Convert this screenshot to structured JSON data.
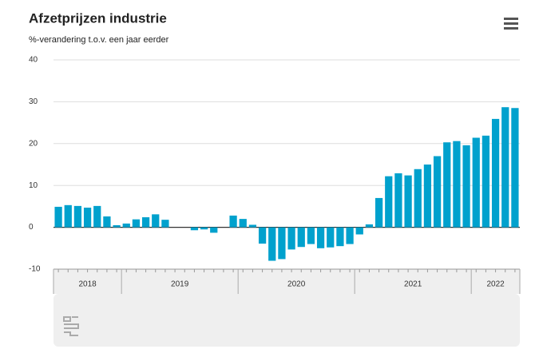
{
  "chart_data": {
    "type": "bar",
    "title": "Afzetprijzen industrie",
    "subtitle": "%-verandering t.o.v. een jaar eerder",
    "color": "#00a1cd",
    "ylim": [
      -10,
      40
    ],
    "yticks": [
      -10,
      0,
      10,
      20,
      30,
      40
    ],
    "grid": true,
    "year_groups": [
      {
        "label": "2018",
        "count": 7
      },
      {
        "label": "2019",
        "count": 12
      },
      {
        "label": "2020",
        "count": 12
      },
      {
        "label": "2021",
        "count": 12
      },
      {
        "label": "2022",
        "count": 5
      }
    ],
    "values": [
      4.9,
      5.3,
      5.1,
      4.7,
      5.1,
      2.6,
      0.5,
      0.9,
      1.9,
      2.4,
      3.1,
      1.8,
      0,
      0,
      -0.7,
      -0.5,
      -1.3,
      0,
      2.8,
      2.0,
      0.6,
      -3.9,
      -8.0,
      -7.6,
      -5.3,
      -4.7,
      -4.0,
      -5.0,
      -4.8,
      -4.5,
      -4.0,
      -1.7,
      0.7,
      7.0,
      12.2,
      12.9,
      12.4,
      13.9,
      15.0,
      17.0,
      20.3,
      20.6,
      19.6,
      21.4,
      21.9,
      25.9,
      28.7,
      28.5
    ]
  }
}
